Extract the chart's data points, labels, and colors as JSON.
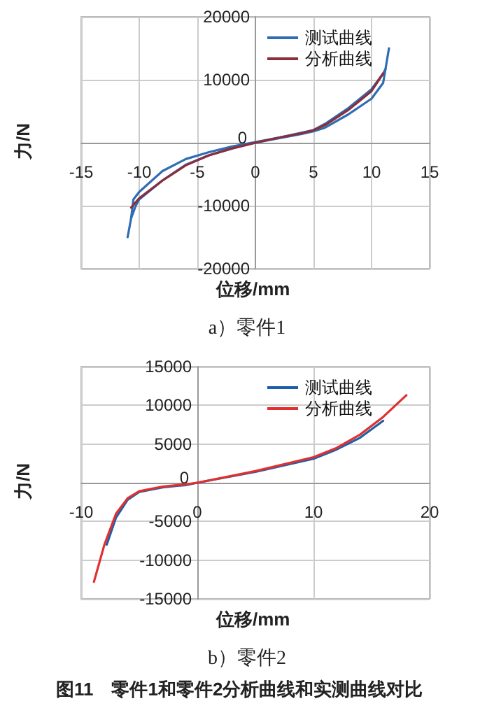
{
  "chart_data": [
    {
      "type": "line",
      "xlabel": "位移/mm",
      "ylabel": "力/N",
      "xlim": [
        -15,
        15
      ],
      "xticks": [
        -15,
        -10,
        -5,
        0,
        5,
        10,
        15
      ],
      "ylim": [
        -20000,
        20000
      ],
      "yticks": [
        -20000,
        -10000,
        0,
        10000,
        20000
      ],
      "grid": true,
      "legend": "top right",
      "marker": "none",
      "annotations": [
        "a）零件1"
      ],
      "series": [
        {
          "name": "测试曲线",
          "color": "#2e6db4",
          "x": [
            -11,
            -10.7,
            -10.3,
            -10,
            -8,
            -6,
            -4,
            -2,
            0,
            2,
            4,
            5,
            6,
            8,
            10,
            11,
            11.5
          ],
          "values": [
            -15000,
            -12000,
            -10000,
            -9000,
            -6000,
            -3500,
            -2000,
            -900,
            0,
            700,
            1400,
            1800,
            2400,
            4500,
            7000,
            9500,
            15000
          ]
        },
        {
          "color": "#2e6db4",
          "x": [
            -10.7,
            -10.5,
            -10,
            -8,
            -6,
            -4,
            -2,
            0,
            2,
            4,
            5,
            6,
            8,
            10,
            11,
            11.2
          ],
          "values": [
            -12000,
            -9000,
            -7800,
            -4500,
            -2600,
            -1500,
            -600,
            100,
            800,
            1600,
            2000,
            3000,
            5500,
            8500,
            11000,
            11700
          ]
        },
        {
          "name": "分析曲线",
          "color": "#8b2d3a",
          "x": [
            -10.7,
            -10,
            -8,
            -6,
            -4,
            -2,
            0,
            2,
            4,
            5,
            6,
            8,
            10,
            11
          ],
          "values": [
            -10300,
            -8800,
            -6000,
            -3600,
            -2000,
            -900,
            0,
            800,
            1500,
            2000,
            2800,
            5200,
            8200,
            11000
          ]
        }
      ]
    },
    {
      "type": "line",
      "xlabel": "位移/mm",
      "ylabel": "力/N",
      "xlim": [
        -10,
        20
      ],
      "xticks": [
        -10,
        0,
        10,
        20
      ],
      "ylim": [
        -15000,
        15000
      ],
      "yticks": [
        -15000,
        -10000,
        -5000,
        0,
        5000,
        10000,
        15000
      ],
      "grid": true,
      "legend": "top right",
      "marker": "none",
      "annotations": [
        "b）零件2",
        "图11　零件1和零件2分析曲线和实测曲线对比"
      ],
      "series": [
        {
          "name": "测试曲线",
          "color": "#1f5fa8",
          "x": [
            -7.8,
            -7,
            -6,
            -5,
            -3,
            -1,
            0,
            5,
            10,
            12,
            14,
            16
          ],
          "values": [
            -8000,
            -4500,
            -2200,
            -1200,
            -600,
            -300,
            0,
            1400,
            3100,
            4300,
            5800,
            8000
          ]
        },
        {
          "name": "分析曲线",
          "color": "#e03030",
          "x": [
            -8.9,
            -8,
            -7,
            -6,
            -5,
            -3,
            -1,
            0,
            5,
            10,
            12,
            14,
            16,
            18
          ],
          "values": [
            -12800,
            -8000,
            -4000,
            -2000,
            -1100,
            -500,
            -200,
            0,
            1500,
            3300,
            4500,
            6200,
            8500,
            11300
          ]
        }
      ]
    }
  ]
}
